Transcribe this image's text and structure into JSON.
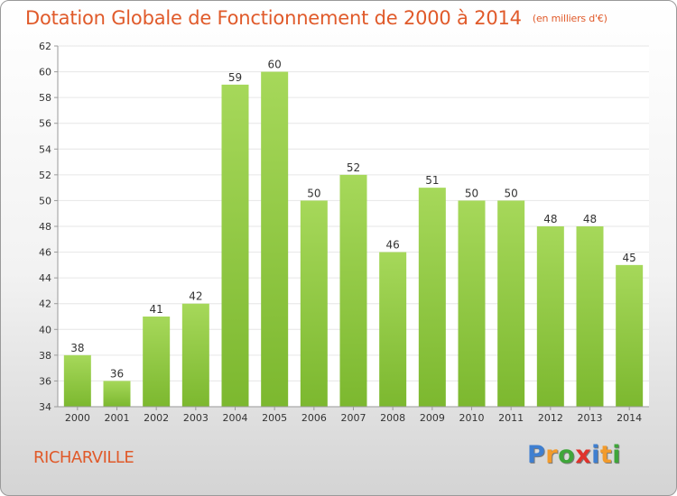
{
  "chart_data": {
    "type": "bar",
    "title": "Dotation Globale de Fonctionnement de 2000 à 2014",
    "subtitle": "(en milliers d'€)",
    "categories": [
      "2000",
      "2001",
      "2002",
      "2003",
      "2004",
      "2005",
      "2006",
      "2007",
      "2008",
      "2009",
      "2010",
      "2011",
      "2012",
      "2013",
      "2014"
    ],
    "values": [
      38,
      36,
      41,
      42,
      59,
      60,
      50,
      52,
      46,
      51,
      50,
      50,
      48,
      48,
      45
    ],
    "ylim": [
      34,
      62
    ],
    "yticks": [
      34,
      36,
      38,
      40,
      42,
      44,
      46,
      48,
      50,
      52,
      54,
      56,
      58,
      60,
      62
    ],
    "grid": true,
    "bar_color": "#7cb82f",
    "bar_color_light": "#a6d85a",
    "grid_color": "#e6e6e6",
    "title_color": "#e05a2a"
  },
  "footer": {
    "place": "RICHARVILLE",
    "logo": [
      "P",
      "r",
      "o",
      "x",
      "i",
      "t",
      "i"
    ],
    "logo_colors": [
      "#3f7fd0",
      "#f29b2c",
      "#3fa63a",
      "#e0332c",
      "#3f7fd0",
      "#f29b2c",
      "#3fa63a"
    ]
  }
}
